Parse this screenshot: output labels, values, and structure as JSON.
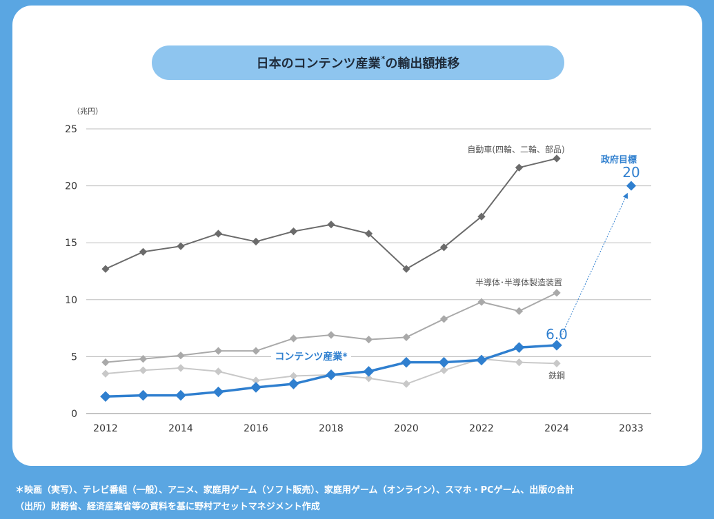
{
  "title": {
    "main": "日本のコンテンツ産業",
    "mark": "*",
    "tail": "の輸出額推移"
  },
  "footnotes": {
    "line1": "＊映画（実写）、テレビ番組（一般）、アニメ、家庭用ゲーム（ソフト販売）、家庭用ゲーム（オンライン）、スマホ・PCゲーム、出版の合計",
    "line2": "（出所）財務省、経済産業省等の資料を基に野村アセットマネジメント作成"
  },
  "colors": {
    "background": "#5aa6e2",
    "card": "#ffffff",
    "title_pill": "#8ec5ef",
    "content": "#2f7fcf",
    "auto": "#6b6b6b",
    "semi": "#a9a9a9",
    "steel": "#c8c8c8",
    "grid": "#bdbdbd"
  },
  "chart_data": {
    "type": "line",
    "unit_label": "（兆円）",
    "ylim": [
      0,
      25
    ],
    "yticks": [
      "0",
      "5",
      "10",
      "15",
      "20",
      "25"
    ],
    "xlabels": [
      "2012",
      "2014",
      "2016",
      "2018",
      "2020",
      "2022",
      "2024",
      "2033"
    ],
    "grid": true,
    "series": [
      {
        "name": "自動車(四輪、二輪、部品)",
        "color": "#6b6b6b",
        "x": [
          2012,
          2013,
          2014,
          2015,
          2016,
          2017,
          2018,
          2019,
          2020,
          2021,
          2022,
          2023,
          2024
        ],
        "values": [
          12.7,
          14.2,
          14.7,
          15.8,
          15.1,
          16.0,
          16.6,
          15.8,
          12.7,
          14.6,
          17.3,
          21.6,
          22.4
        ]
      },
      {
        "name": "半導体･半導体製造装置",
        "color": "#a9a9a9",
        "x": [
          2012,
          2013,
          2014,
          2015,
          2016,
          2017,
          2018,
          2019,
          2020,
          2021,
          2022,
          2023,
          2024
        ],
        "values": [
          4.5,
          4.8,
          5.1,
          5.5,
          5.5,
          6.6,
          6.9,
          6.5,
          6.7,
          8.3,
          9.8,
          9.0,
          10.6
        ]
      },
      {
        "name": "鉄鋼",
        "color": "#c8c8c8",
        "x": [
          2012,
          2013,
          2014,
          2015,
          2016,
          2017,
          2018,
          2019,
          2020,
          2021,
          2022,
          2023,
          2024
        ],
        "values": [
          3.5,
          3.8,
          4.0,
          3.7,
          2.9,
          3.3,
          3.4,
          3.1,
          2.6,
          3.8,
          4.8,
          4.5,
          4.4
        ]
      },
      {
        "name": "コンテンツ産業*",
        "color": "#2f7fcf",
        "x": [
          2012,
          2013,
          2014,
          2015,
          2016,
          2017,
          2018,
          2019,
          2020,
          2021,
          2022,
          2023,
          2024
        ],
        "values": [
          1.5,
          1.6,
          1.6,
          1.9,
          2.3,
          2.6,
          3.4,
          3.7,
          4.5,
          4.5,
          4.7,
          5.8,
          6.0
        ]
      }
    ],
    "target": {
      "label": "政府目標",
      "x": "2033",
      "value": 20,
      "value_label": "20"
    },
    "annotations": {
      "content_latest": "6.0"
    }
  }
}
